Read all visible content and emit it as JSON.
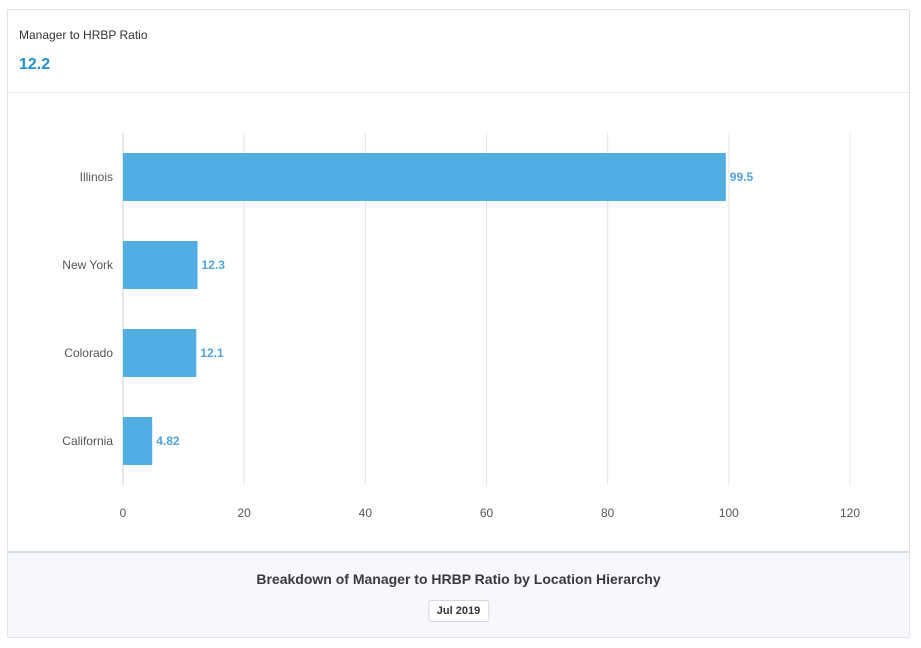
{
  "metric": {
    "title": "Manager to HRBP Ratio",
    "value": "12.2"
  },
  "footer": {
    "title": "Breakdown of Manager to HRBP Ratio by Location Hierarchy",
    "date_label": "Jul 2019"
  },
  "chart_data": {
    "type": "bar",
    "orientation": "horizontal",
    "categories": [
      "Illinois",
      "New York",
      "Colorado",
      "California"
    ],
    "values": [
      99.5,
      12.3,
      12.1,
      4.82
    ],
    "data_labels": [
      "99.5",
      "12.3",
      "12.1",
      "4.82"
    ],
    "xlim": [
      0,
      120
    ],
    "xticks": [
      0,
      20,
      40,
      60,
      80,
      100,
      120
    ],
    "grid": true,
    "bar_color": "#52ade3",
    "label_color": "#4fa3dd"
  }
}
